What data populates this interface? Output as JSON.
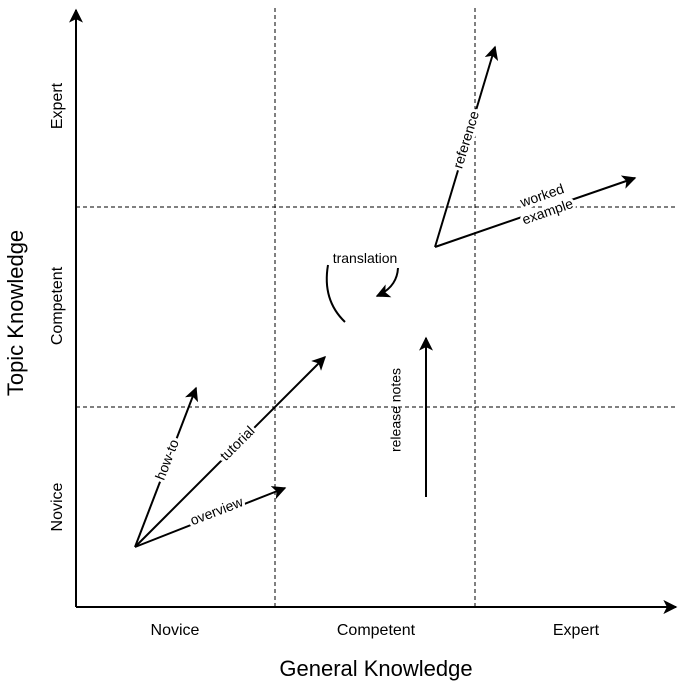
{
  "axes": {
    "x_title": "General Knowledge",
    "y_title": "Topic Knowledge",
    "x_ticks": [
      "Novice",
      "Competent",
      "Expert"
    ],
    "y_ticks": [
      "Novice",
      "Competent",
      "Expert"
    ]
  },
  "arrows": {
    "how_to": "how-to",
    "tutorial": "tutorial",
    "overview": "overview",
    "translation": "translation",
    "release_notes": "release notes",
    "reference": "reference",
    "worked_example_line1": "worked",
    "worked_example_line2": "example"
  }
}
